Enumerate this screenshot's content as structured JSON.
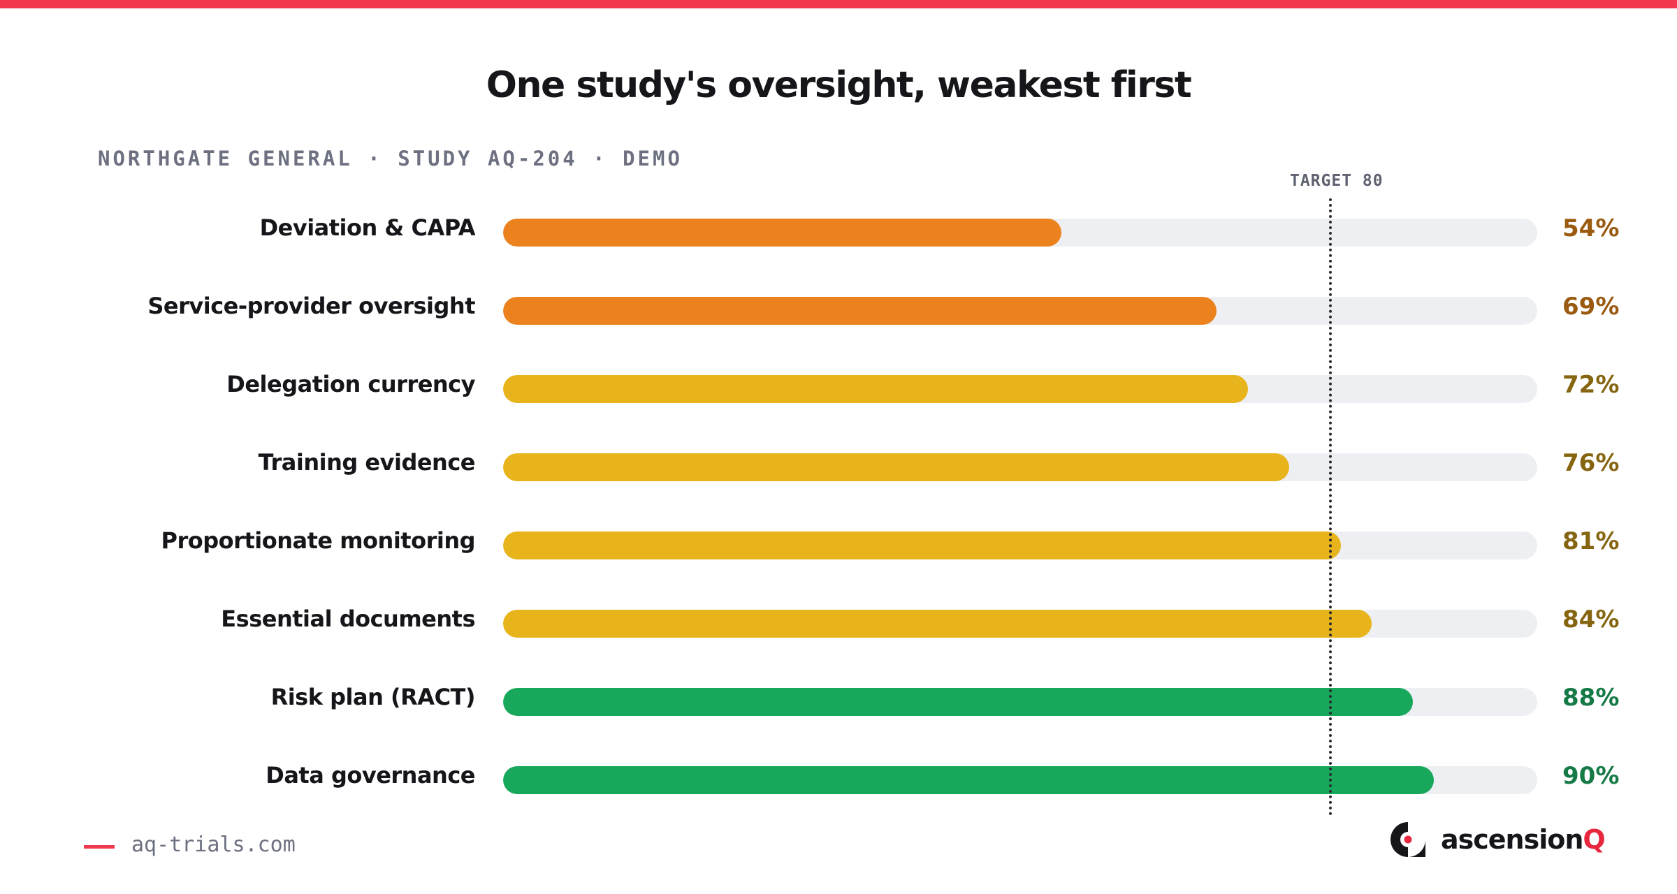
{
  "header": {
    "title": "One study's oversight, weakest first",
    "subtitle": "NORTHGATE GENERAL · STUDY AQ-204 · DEMO"
  },
  "target": {
    "label": "TARGET 80",
    "value": 80
  },
  "chart_data": {
    "type": "bar",
    "orientation": "horizontal",
    "title": "One study's oversight, weakest first",
    "xlim": [
      0,
      100
    ],
    "categories": [
      "Deviation & CAPA",
      "Service-provider oversight",
      "Delegation currency",
      "Training evidence",
      "Proportionate monitoring",
      "Essential documents",
      "Risk plan (RACT)",
      "Data governance"
    ],
    "values": [
      54,
      69,
      72,
      76,
      81,
      84,
      88,
      90
    ],
    "value_labels": [
      "54%",
      "69%",
      "72%",
      "76%",
      "81%",
      "84%",
      "88%",
      "90%"
    ],
    "reference_line": {
      "label": "TARGET 80",
      "value": 80
    },
    "colors": {
      "low_bar": "#eb821e",
      "mid_bar": "#e8b41c",
      "high_bar": "#18a85b",
      "low_text": "#9a5a0f",
      "mid_text": "#866510",
      "high_text": "#157a45",
      "track": "#eeeff3"
    }
  },
  "footer": {
    "url": "aq-trials.com"
  },
  "brand": {
    "name": "ascension",
    "accent": "Q"
  }
}
